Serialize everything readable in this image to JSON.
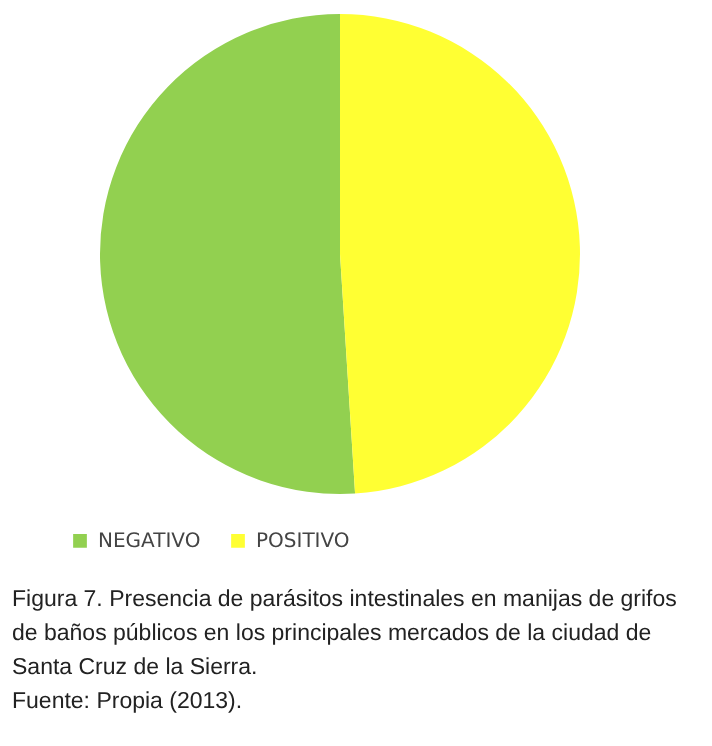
{
  "chart_data": {
    "type": "pie",
    "categories": [
      "NEGATIVO",
      "POSITIVO"
    ],
    "values": [
      51,
      49
    ],
    "colors": [
      "#92d050",
      "#ffff33"
    ],
    "legend": "bottom",
    "annotations": [
      "Figura 7. Presencia de parásitos intestinales en manijas de grifos de baños públicos en los principales mercados de la ciudad de Santa Cruz de la Sierra.",
      "Fuente: Propia (2013)."
    ]
  }
}
